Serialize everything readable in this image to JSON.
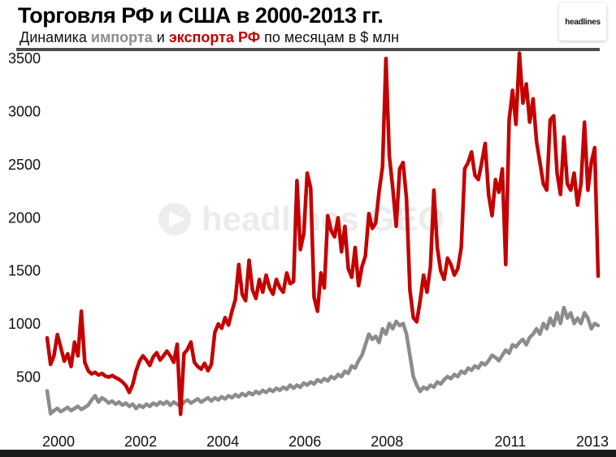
{
  "header": {
    "title": "Торговля РФ и США в 2000-2013 гг.",
    "subtitle_prefix": "Динамика ",
    "subtitle_import": "импорта",
    "subtitle_mid": " и ",
    "subtitle_export": "экспорта РФ",
    "subtitle_suffix": " по месяцам в $ млн",
    "logo_text": "headlines"
  },
  "watermark": {
    "text": "headlines GEO"
  },
  "colors": {
    "export": "#c40000",
    "import": "#8c8c8c",
    "axis_text": "#111111"
  },
  "chart_data": {
    "type": "line",
    "title": "Торговля РФ и США в 2000-2013 гг.",
    "xlabel": "",
    "ylabel": "$ млн",
    "ylim": [
      0,
      3500
    ],
    "months": 162,
    "x_start_year": 2000,
    "grid": false,
    "legend": "in subtitle (импорта = gray, экспорта РФ = red)",
    "yticks": [
      500,
      1000,
      1500,
      2000,
      2500,
      3000,
      3500
    ],
    "xticks": [
      {
        "label": "2000",
        "month_index": 0
      },
      {
        "label": "2002",
        "month_index": 24
      },
      {
        "label": "2004",
        "month_index": 48
      },
      {
        "label": "2006",
        "month_index": 72
      },
      {
        "label": "2008",
        "month_index": 96
      },
      {
        "label": "2011",
        "month_index": 132
      },
      {
        "label": "2013",
        "month_index": 156
      }
    ],
    "series": [
      {
        "name": "импорт",
        "color": "#8c8c8c",
        "values": [
          370,
          155,
          185,
          205,
          175,
          195,
          215,
          185,
          205,
          225,
          195,
          215,
          235,
          285,
          325,
          265,
          305,
          285,
          255,
          275,
          245,
          265,
          235,
          255,
          225,
          245,
          205,
          235,
          215,
          245,
          225,
          255,
          235,
          265,
          245,
          270,
          235,
          265,
          245,
          225,
          265,
          285,
          255,
          275,
          295,
          265,
          285,
          305,
          275,
          305,
          285,
          315,
          295,
          325,
          305,
          335,
          315,
          345,
          325,
          355,
          335,
          365,
          345,
          375,
          355,
          385,
          365,
          395,
          375,
          405,
          385,
          425,
          395,
          425,
          405,
          445,
          425,
          455,
          435,
          475,
          455,
          485,
          465,
          505,
          485,
          525,
          505,
          555,
          535,
          605,
          585,
          655,
          705,
          805,
          905,
          855,
          885,
          825,
          955,
          905,
          1005,
          955,
          1025,
          985,
          1005,
          905,
          705,
          505,
          425,
          365,
          405,
          385,
          425,
          405,
          455,
          435,
          475,
          505,
          485,
          525,
          505,
          555,
          535,
          585,
          565,
          605,
          585,
          635,
          615,
          655,
          705,
          685,
          655,
          705,
          755,
          725,
          805,
          785,
          825,
          855,
          805,
          875,
          905,
          955,
          905,
          1005,
          955,
          1055,
          985,
          1105,
          1005,
          1155,
          1055,
          1105,
          1005,
          1055,
          1005,
          1105,
          1055,
          955,
          1005,
          985
        ]
      },
      {
        "name": "экспорт РФ",
        "color": "#c40000",
        "values": [
          870,
          620,
          700,
          900,
          780,
          650,
          720,
          600,
          830,
          700,
          1120,
          640,
          560,
          530,
          545,
          520,
          535,
          510,
          500,
          515,
          495,
          480,
          455,
          420,
          355,
          430,
          560,
          650,
          700,
          660,
          610,
          690,
          730,
          660,
          700,
          745,
          700,
          640,
          810,
          150,
          720,
          760,
          830,
          640,
          600,
          575,
          630,
          560,
          620,
          920,
          1000,
          960,
          1060,
          990,
          1120,
          1230,
          1560,
          1280,
          1220,
          1600,
          1320,
          1240,
          1420,
          1300,
          1460,
          1340,
          1280,
          1420,
          1340,
          1300,
          1480,
          1380,
          1400,
          2350,
          1700,
          1850,
          2420,
          2280,
          1250,
          1120,
          1480,
          1340,
          2020,
          1880,
          1820,
          2000,
          1680,
          1920,
          1520,
          1440,
          1720,
          1360,
          1540,
          1640,
          2040,
          1900,
          1950,
          2250,
          2480,
          3500,
          2580,
          2280,
          1920,
          2460,
          2520,
          2180,
          1320,
          1060,
          1020,
          1220,
          1460,
          1300,
          1540,
          2260,
          1720,
          1500,
          1420,
          1620,
          1560,
          1460,
          1520,
          1720,
          2460,
          2520,
          2620,
          2400,
          2360,
          2520,
          2700,
          2220,
          2020,
          2360,
          2240,
          2460,
          1560,
          2920,
          3200,
          2880,
          3550,
          3080,
          3260,
          2900,
          3120,
          2720,
          2520,
          2320,
          2260,
          2920,
          2960,
          2420,
          2220,
          2760,
          2320,
          2260,
          2420,
          2120,
          2320,
          2900,
          2260,
          2520,
          2660,
          1450
        ]
      }
    ]
  }
}
